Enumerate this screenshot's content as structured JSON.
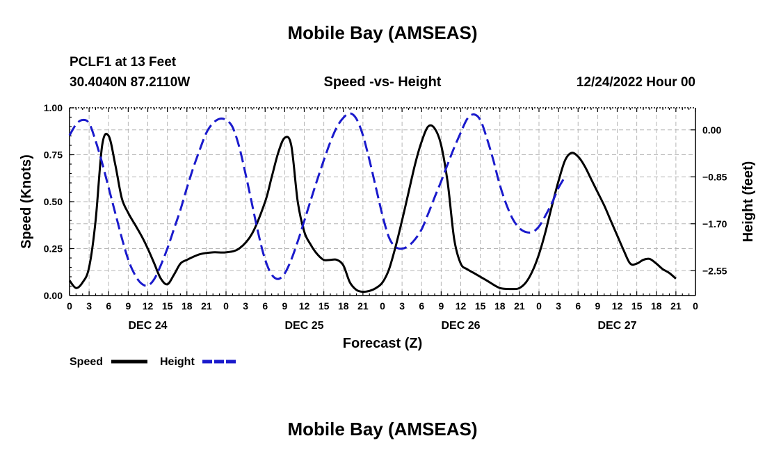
{
  "page": {
    "title": "Mobile Bay (AMSEAS)",
    "footer_title": "Mobile Bay (AMSEAS)"
  },
  "header": {
    "station": "PCLF1 at 13 Feet",
    "coords": "30.4040N  87.2110W",
    "subtitle": "Speed -vs- Height",
    "date": "12/24/2022 Hour 00"
  },
  "chart_data": {
    "type": "line",
    "title": "Speed -vs- Height",
    "xlabel": "Forecast (Z)",
    "ylabel": "Speed (Knots)",
    "y2label": "Height (feet)",
    "xlim": [
      0,
      96
    ],
    "ylim": [
      0,
      1.0
    ],
    "y2lim": [
      -3.0,
      0.4
    ],
    "xticks": [
      0,
      3,
      6,
      9,
      12,
      15,
      18,
      21,
      24,
      27,
      30,
      33,
      36,
      39,
      42,
      45,
      48,
      51,
      54,
      57,
      60,
      63,
      66,
      69,
      72,
      75,
      78,
      81,
      84,
      87,
      90,
      93,
      96
    ],
    "xtick_labels": [
      "0",
      "3",
      "6",
      "9",
      "12",
      "15",
      "18",
      "21",
      "0",
      "3",
      "6",
      "9",
      "12",
      "15",
      "18",
      "21",
      "0",
      "3",
      "6",
      "9",
      "12",
      "15",
      "18",
      "21",
      "0",
      "3",
      "6",
      "9",
      "12",
      "15",
      "18",
      "21",
      "0"
    ],
    "yticks": [
      0,
      0.25,
      0.5,
      0.75,
      1.0
    ],
    "ytick_labels": [
      "0.00",
      "0.25",
      "0.50",
      "0.75",
      "1.00"
    ],
    "y2ticks": [
      0.0,
      -0.85,
      -1.7,
      -2.55
    ],
    "y2tick_labels": [
      "0.00",
      "−0.85",
      "−1.70",
      "−2.55"
    ],
    "date_labels": [
      {
        "label": "DEC 24",
        "hour": 12
      },
      {
        "label": "DEC 25",
        "hour": 36
      },
      {
        "label": "DEC 26",
        "hour": 60
      },
      {
        "label": "DEC 27",
        "hour": 84
      }
    ],
    "grid": true,
    "legend_position": "bottom-left",
    "series": [
      {
        "name": "Speed",
        "axis": "left",
        "color": "#000000",
        "dash": "solid",
        "points": [
          [
            0,
            0.08
          ],
          [
            1,
            0.04
          ],
          [
            2,
            0.07
          ],
          [
            3,
            0.15
          ],
          [
            4,
            0.4
          ],
          [
            5,
            0.8
          ],
          [
            6,
            0.85
          ],
          [
            7,
            0.7
          ],
          [
            8,
            0.52
          ],
          [
            9,
            0.44
          ],
          [
            10,
            0.38
          ],
          [
            11,
            0.32
          ],
          [
            12,
            0.25
          ],
          [
            13,
            0.17
          ],
          [
            14,
            0.09
          ],
          [
            15,
            0.06
          ],
          [
            16,
            0.11
          ],
          [
            17,
            0.17
          ],
          [
            18,
            0.19
          ],
          [
            20,
            0.22
          ],
          [
            22,
            0.23
          ],
          [
            24,
            0.23
          ],
          [
            26,
            0.25
          ],
          [
            28,
            0.33
          ],
          [
            30,
            0.5
          ],
          [
            31,
            0.63
          ],
          [
            32,
            0.76
          ],
          [
            33,
            0.84
          ],
          [
            34,
            0.8
          ],
          [
            35,
            0.5
          ],
          [
            36,
            0.34
          ],
          [
            37,
            0.27
          ],
          [
            38,
            0.22
          ],
          [
            39,
            0.19
          ],
          [
            40,
            0.19
          ],
          [
            41,
            0.19
          ],
          [
            42,
            0.16
          ],
          [
            43,
            0.07
          ],
          [
            44,
            0.03
          ],
          [
            45,
            0.02
          ],
          [
            46,
            0.025
          ],
          [
            47,
            0.04
          ],
          [
            48,
            0.07
          ],
          [
            49,
            0.14
          ],
          [
            50,
            0.26
          ],
          [
            51,
            0.4
          ],
          [
            52,
            0.55
          ],
          [
            53,
            0.7
          ],
          [
            54,
            0.82
          ],
          [
            55,
            0.9
          ],
          [
            56,
            0.89
          ],
          [
            57,
            0.8
          ],
          [
            58,
            0.6
          ],
          [
            59,
            0.3
          ],
          [
            60,
            0.17
          ],
          [
            61,
            0.14
          ],
          [
            62,
            0.12
          ],
          [
            64,
            0.08
          ],
          [
            66,
            0.04
          ],
          [
            68,
            0.035
          ],
          [
            69,
            0.04
          ],
          [
            70,
            0.07
          ],
          [
            71,
            0.13
          ],
          [
            72,
            0.22
          ],
          [
            73,
            0.34
          ],
          [
            74,
            0.48
          ],
          [
            75,
            0.61
          ],
          [
            76,
            0.72
          ],
          [
            77,
            0.76
          ],
          [
            78,
            0.74
          ],
          [
            79,
            0.69
          ],
          [
            80,
            0.62
          ],
          [
            81,
            0.55
          ],
          [
            82,
            0.48
          ],
          [
            83,
            0.4
          ],
          [
            84,
            0.32
          ],
          [
            85,
            0.24
          ],
          [
            86,
            0.17
          ],
          [
            87,
            0.17
          ],
          [
            88,
            0.19
          ],
          [
            89,
            0.195
          ],
          [
            90,
            0.17
          ],
          [
            91,
            0.14
          ],
          [
            92,
            0.12
          ],
          [
            93,
            0.09
          ]
        ]
      },
      {
        "name": "Height",
        "axis": "right",
        "color": "#1a1acc",
        "dash": "dashed",
        "points": [
          [
            0,
            -0.1
          ],
          [
            1,
            0.1
          ],
          [
            2,
            0.18
          ],
          [
            3,
            0.12
          ],
          [
            4,
            -0.2
          ],
          [
            5,
            -0.6
          ],
          [
            6,
            -1.05
          ],
          [
            7,
            -1.5
          ],
          [
            8,
            -1.95
          ],
          [
            9,
            -2.35
          ],
          [
            10,
            -2.62
          ],
          [
            11,
            -2.78
          ],
          [
            12,
            -2.82
          ],
          [
            13,
            -2.7
          ],
          [
            14,
            -2.45
          ],
          [
            15,
            -2.15
          ],
          [
            16,
            -1.8
          ],
          [
            17,
            -1.45
          ],
          [
            18,
            -1.05
          ],
          [
            19,
            -0.68
          ],
          [
            20,
            -0.35
          ],
          [
            21,
            -0.05
          ],
          [
            22,
            0.12
          ],
          [
            23,
            0.2
          ],
          [
            24,
            0.18
          ],
          [
            25,
            0.05
          ],
          [
            26,
            -0.3
          ],
          [
            27,
            -0.8
          ],
          [
            28,
            -1.35
          ],
          [
            29,
            -1.9
          ],
          [
            30,
            -2.35
          ],
          [
            31,
            -2.62
          ],
          [
            32,
            -2.7
          ],
          [
            33,
            -2.6
          ],
          [
            34,
            -2.35
          ],
          [
            35,
            -2.02
          ],
          [
            36,
            -1.65
          ],
          [
            37,
            -1.27
          ],
          [
            38,
            -0.9
          ],
          [
            39,
            -0.55
          ],
          [
            40,
            -0.22
          ],
          [
            41,
            0.05
          ],
          [
            42,
            0.22
          ],
          [
            43,
            0.3
          ],
          [
            44,
            0.2
          ],
          [
            45,
            -0.1
          ],
          [
            46,
            -0.55
          ],
          [
            47,
            -1.05
          ],
          [
            48,
            -1.55
          ],
          [
            49,
            -1.95
          ],
          [
            50,
            -2.12
          ],
          [
            51,
            -2.15
          ],
          [
            52,
            -2.1
          ],
          [
            53,
            -1.98
          ],
          [
            54,
            -1.8
          ],
          [
            55,
            -1.52
          ],
          [
            56,
            -1.22
          ],
          [
            57,
            -0.93
          ],
          [
            58,
            -0.62
          ],
          [
            59,
            -0.32
          ],
          [
            60,
            -0.05
          ],
          [
            61,
            0.2
          ],
          [
            62,
            0.28
          ],
          [
            63,
            0.18
          ],
          [
            64,
            -0.15
          ],
          [
            65,
            -0.55
          ],
          [
            66,
            -1.0
          ],
          [
            67,
            -1.35
          ],
          [
            68,
            -1.62
          ],
          [
            69,
            -1.78
          ],
          [
            70,
            -1.85
          ],
          [
            71,
            -1.85
          ],
          [
            72,
            -1.75
          ],
          [
            73,
            -1.55
          ],
          [
            74,
            -1.32
          ],
          [
            75,
            -1.05
          ],
          [
            76,
            -0.85
          ]
        ]
      }
    ]
  },
  "legend": {
    "speed_label": "Speed",
    "height_label": "Height"
  }
}
